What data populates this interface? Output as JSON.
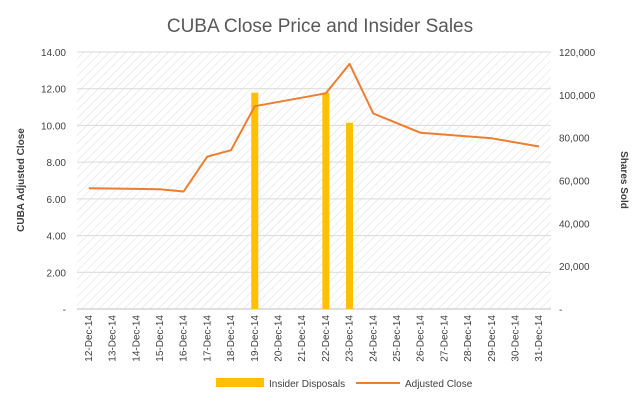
{
  "chart_data": {
    "type": "bar+line",
    "title": "CUBA Close Price and Insider Sales",
    "categories": [
      "12-Dec-14",
      "13-Dec-14",
      "14-Dec-14",
      "15-Dec-14",
      "16-Dec-14",
      "17-Dec-14",
      "18-Dec-14",
      "19-Dec-14",
      "20-Dec-14",
      "21-Dec-14",
      "22-Dec-14",
      "23-Dec-14",
      "24-Dec-14",
      "25-Dec-14",
      "26-Dec-14",
      "27-Dec-14",
      "28-Dec-14",
      "29-Dec-14",
      "30-Dec-14",
      "31-Dec-14"
    ],
    "left_axis": {
      "title": "CUBA Adjusted Close",
      "range": [
        0,
        14
      ],
      "tick_labels": [
        "-",
        "2.00",
        "4.00",
        "6.00",
        "8.00",
        "10.00",
        "12.00",
        "14.00"
      ],
      "tick_values": [
        0,
        2,
        4,
        6,
        8,
        10,
        12,
        14
      ]
    },
    "right_axis": {
      "title": "Shares Sold",
      "range": [
        0,
        120000
      ],
      "tick_labels": [
        "-",
        "20,000",
        "40,000",
        "60,000",
        "80,000",
        "100,000",
        "120,000"
      ],
      "tick_values": [
        0,
        20000,
        40000,
        60000,
        80000,
        100000,
        120000
      ]
    },
    "series": [
      {
        "name": "Insider Disposals",
        "kind": "bar",
        "axis": "right",
        "color": "#FFC000",
        "points": [
          {
            "category": "19-Dec-14",
            "value": 101000
          },
          {
            "category": "22-Dec-14",
            "value": 101000
          },
          {
            "category": "23-Dec-14",
            "value": 87000
          }
        ]
      },
      {
        "name": "Adjusted Close",
        "kind": "line",
        "axis": "left",
        "color": "#ED7D31",
        "points": [
          {
            "category": "12-Dec-14",
            "value": 6.58
          },
          {
            "category": "15-Dec-14",
            "value": 6.52
          },
          {
            "category": "16-Dec-14",
            "value": 6.4
          },
          {
            "category": "17-Dec-14",
            "value": 8.3
          },
          {
            "category": "18-Dec-14",
            "value": 8.65
          },
          {
            "category": "19-Dec-14",
            "value": 11.05
          },
          {
            "category": "22-Dec-14",
            "value": 11.75
          },
          {
            "category": "23-Dec-14",
            "value": 13.35
          },
          {
            "category": "24-Dec-14",
            "value": 10.65
          },
          {
            "category": "26-Dec-14",
            "value": 9.6
          },
          {
            "category": "29-Dec-14",
            "value": 9.3
          },
          {
            "category": "31-Dec-14",
            "value": 8.85
          }
        ]
      }
    ],
    "legend": {
      "placement": "bottom-center"
    },
    "gridlines": true,
    "plot_background": "diagonal-hatch"
  }
}
